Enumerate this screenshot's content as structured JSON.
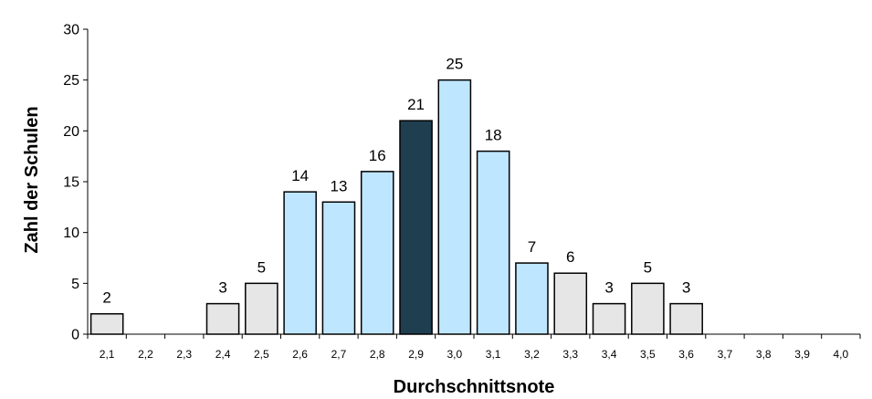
{
  "chart_data": {
    "type": "bar",
    "title": "",
    "xlabel": "Durchschnittsnote",
    "ylabel": "Zahl der Schulen",
    "ylim": [
      0,
      30
    ],
    "yticks": [
      0,
      5,
      10,
      15,
      20,
      25,
      30
    ],
    "grid": false,
    "categories": [
      "2,1",
      "2,2",
      "2,3",
      "2,4",
      "2,5",
      "2,6",
      "2,7",
      "2,8",
      "2,9",
      "3,0",
      "3,1",
      "3,2",
      "3,3",
      "3,4",
      "3,5",
      "3,6",
      "3,7",
      "3,8",
      "3,9",
      "4,0"
    ],
    "values": [
      2,
      0,
      0,
      3,
      5,
      14,
      13,
      16,
      21,
      25,
      18,
      7,
      6,
      3,
      5,
      3,
      0,
      0,
      0,
      0
    ],
    "data_labels": [
      "2",
      "",
      "",
      "3",
      "5",
      "14",
      "13",
      "16",
      "21",
      "25",
      "18",
      "7",
      "6",
      "3",
      "5",
      "3",
      "",
      "",
      "",
      ""
    ],
    "bar_colors": [
      "#e6e6e6",
      "#e6e6e6",
      "#e6e6e6",
      "#e6e6e6",
      "#e6e6e6",
      "#bfe6ff",
      "#bfe6ff",
      "#bfe6ff",
      "#1f3f50",
      "#bfe6ff",
      "#bfe6ff",
      "#bfe6ff",
      "#e6e6e6",
      "#e6e6e6",
      "#e6e6e6",
      "#e6e6e6",
      "#e6e6e6",
      "#e6e6e6",
      "#e6e6e6",
      "#e6e6e6"
    ]
  },
  "colors": {
    "gray_bar": "#e6e6e6",
    "light_blue_bar": "#bfe6ff",
    "highlight_bar": "#1f3f50",
    "bar_border": "#000000"
  }
}
